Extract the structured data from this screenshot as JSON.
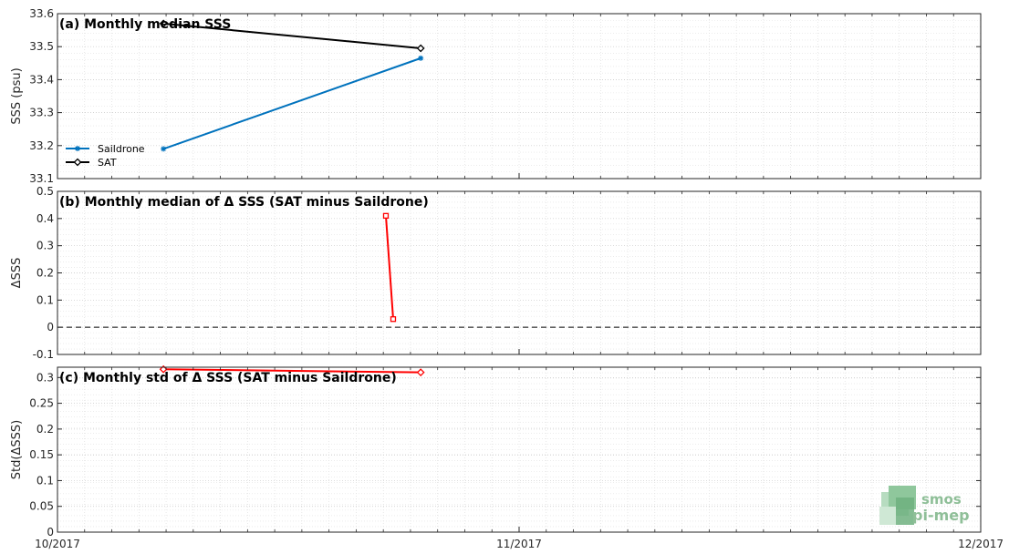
{
  "chart_data": [
    {
      "type": "line",
      "title": "(a) Monthly median SSS",
      "ylabel": "SSS (psu)",
      "ylim": [
        33.1,
        33.6
      ],
      "yticks": [
        "33.1",
        "33.2",
        "33.3",
        "33.4",
        "33.5",
        "33.6"
      ],
      "legend_position": "middle-left",
      "grid": true,
      "series": [
        {
          "name": "Saildrone",
          "color": "#0072bd",
          "marker": "asterisk",
          "x": [
            "2017-10-08",
            "2017-10-25"
          ],
          "y": [
            33.19,
            33.465
          ]
        },
        {
          "name": "SAT",
          "color": "#000000",
          "marker": "diamond",
          "x": [
            "2017-10-08",
            "2017-10-25"
          ],
          "y": [
            33.57,
            33.495
          ]
        }
      ]
    },
    {
      "type": "line",
      "title": "(b) Monthly median of Δ SSS (SAT minus Saildrone)",
      "ylabel": "ΔSSS",
      "ylim": [
        -0.1,
        0.5
      ],
      "yticks": [
        "-0.1",
        "0",
        "0.1",
        "0.2",
        "0.3",
        "0.4",
        "0.5"
      ],
      "zero_line": true,
      "grid": true,
      "series": [
        {
          "color": "#ff0000",
          "marker": "square",
          "x": [
            "2017-10-23",
            "2017-10-23"
          ],
          "y": [
            0.41,
            0.03
          ]
        }
      ]
    },
    {
      "type": "line",
      "title": "(c) Monthly std of Δ SSS (SAT minus Saildrone)",
      "ylabel": "Std(ΔSSS)",
      "ylim": [
        0,
        0.32
      ],
      "yticks": [
        "0",
        "0.05",
        "0.1",
        "0.15",
        "0.2",
        "0.25",
        "0.3"
      ],
      "grid": true,
      "series": [
        {
          "color": "#ff0000",
          "marker": "diamond",
          "x": [
            "2017-10-08",
            "2017-10-25"
          ],
          "y": [
            0.316,
            0.31
          ]
        }
      ]
    }
  ],
  "xaxis": {
    "range": [
      "2017-10-01",
      "2017-12-01"
    ],
    "ticks": [
      "10/2017",
      "11/2017",
      "12/2017"
    ]
  },
  "logo": {
    "line1": "smos",
    "line2": "pi-mep"
  }
}
